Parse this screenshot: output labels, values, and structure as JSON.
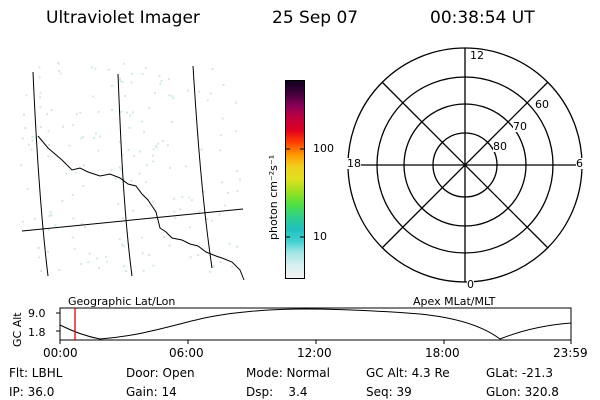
{
  "header": {
    "title": "Ultraviolet Imager",
    "date": "25 Sep 07",
    "time": "00:38:54 UT"
  },
  "colorbar": {
    "unit_label": "photon cm⁻²s⁻¹",
    "tick_100": "100",
    "tick_10": "10",
    "colors": [
      "#f2f2f2",
      "#d9f0f0",
      "#a8e6e6",
      "#40d0d0",
      "#20c0c0",
      "#30d08a",
      "#50e040",
      "#9ae020",
      "#e0e020",
      "#f0d020",
      "#ff9a00",
      "#ff4000",
      "#e00020",
      "#c00040",
      "#8a0058",
      "#40003a",
      "#100020"
    ]
  },
  "polar": {
    "mlt_12": "12",
    "mlt_18": "18",
    "mlt_6": "6",
    "mlt_0": "0",
    "lat_60": "60",
    "lat_70": "70",
    "lat_80": "80"
  },
  "timeline": {
    "left_title": "Geographic Lat/Lon",
    "right_title": "Apex MLat/MLT",
    "axis_label": "GC Alt",
    "y_high": "9.0",
    "y_low": "1.8",
    "ticks": [
      "00:00",
      "06:00",
      "12:00",
      "18:00",
      "23:59"
    ]
  },
  "status": {
    "flt": "Flt: LBHL",
    "ip": "IP: 36.0",
    "door": "Door: Open",
    "gain": "Gain: 14",
    "mode": "Mode: Normal",
    "dsp": "Dsp:    3.4",
    "gcalt": "GC Alt: 4.3 Re",
    "seq": "Seq: 39",
    "glat": "GLat: -21.3",
    "glon": "GLon: 320.8"
  }
}
